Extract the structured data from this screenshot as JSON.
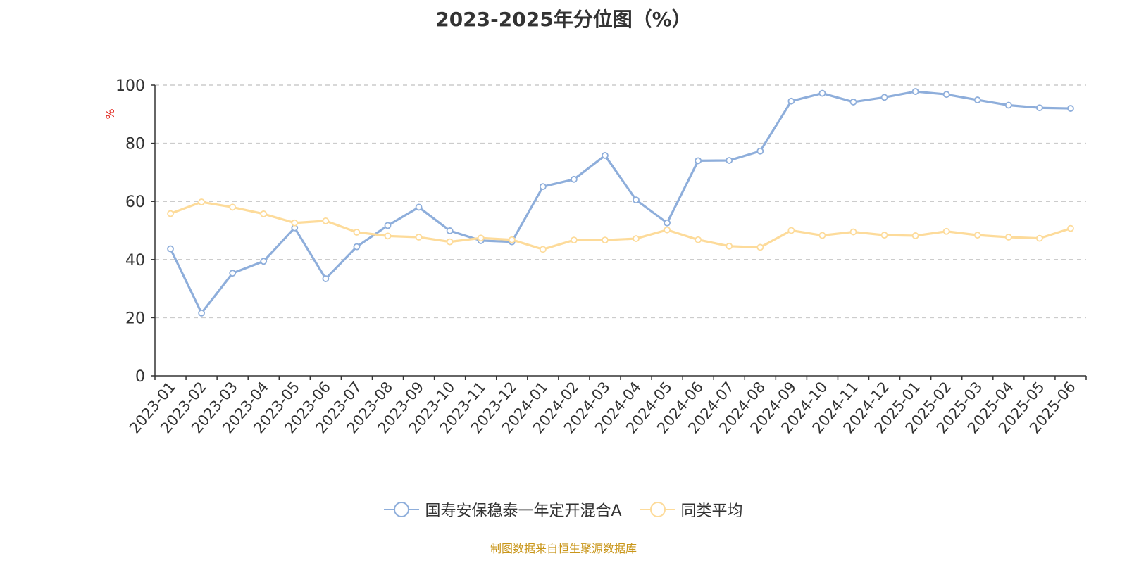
{
  "title": "2023-2025年分位图（%）",
  "source": "制图数据来自恒生聚源数据库",
  "colors": {
    "series1": "#8eaedb",
    "series2": "#fddb9a",
    "unit": "#e0241c",
    "source": "#c9961a"
  },
  "chart_data": {
    "type": "line",
    "title": "2023-2025年分位图（%）",
    "ylabel": "%",
    "ylim": [
      0,
      100
    ],
    "yticks": [
      0,
      20,
      40,
      60,
      80,
      100
    ],
    "grid": true,
    "legend_position": "bottom",
    "categories": [
      "2023-01",
      "2023-02",
      "2023-03",
      "2023-04",
      "2023-05",
      "2023-06",
      "2023-07",
      "2023-08",
      "2023-09",
      "2023-10",
      "2023-11",
      "2023-12",
      "2024-01",
      "2024-02",
      "2024-03",
      "2024-04",
      "2024-05",
      "2024-06",
      "2024-07",
      "2024-08",
      "2024-09",
      "2024-10",
      "2024-11",
      "2024-12",
      "2025-01",
      "2025-02",
      "2025-03",
      "2025-04",
      "2025-05",
      "2025-06"
    ],
    "series": [
      {
        "name": "国寿安保稳泰一年定开混合A",
        "values": [
          43.7,
          21.6,
          35.3,
          39.4,
          50.9,
          33.4,
          44.4,
          51.7,
          58.0,
          49.9,
          46.5,
          46.1,
          65.1,
          67.6,
          75.8,
          60.5,
          52.6,
          74.0,
          74.1,
          77.3,
          94.5,
          97.2,
          94.2,
          95.8,
          97.8,
          96.8,
          94.9,
          93.1,
          92.2,
          92.0
        ]
      },
      {
        "name": "同类平均",
        "values": [
          55.8,
          59.8,
          58.0,
          55.7,
          52.6,
          53.3,
          49.4,
          48.1,
          47.7,
          46.1,
          47.4,
          46.8,
          43.5,
          46.7,
          46.7,
          47.2,
          50.2,
          46.8,
          44.6,
          44.2,
          50.0,
          48.3,
          49.5,
          48.4,
          48.2,
          49.7,
          48.4,
          47.7,
          47.3,
          50.7
        ]
      }
    ]
  }
}
